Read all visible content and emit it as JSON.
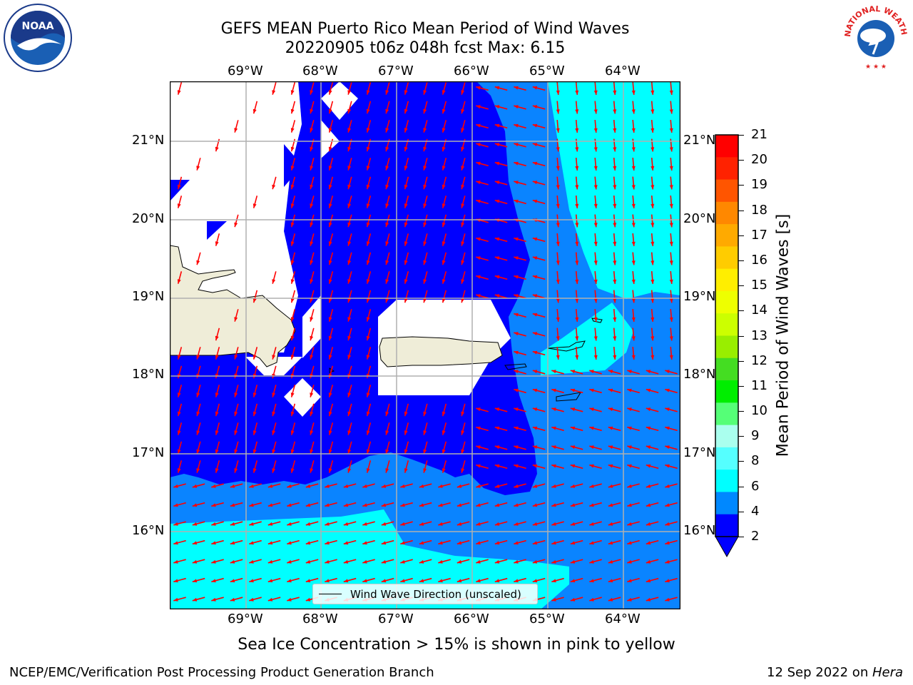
{
  "header": {
    "title_line1": "GEFS MEAN Puerto Rico Mean Period of Wind Waves",
    "title_line2": "20220905 t06z 048h fcst   Max: 6.15"
  },
  "logos": {
    "left": "NOAA",
    "right": "NATIONAL WEATHER SERVICE"
  },
  "map": {
    "lon_labels": [
      "69°W",
      "68°W",
      "67°W",
      "66°W",
      "65°W",
      "64°W"
    ],
    "lat_labels": [
      "21°N",
      "20°N",
      "19°N",
      "18°N",
      "17°N",
      "16°N"
    ],
    "legend_label": "Wind Wave Direction (unscaled)"
  },
  "colorbar": {
    "label": "Mean Period of Wind Waves [s]",
    "ticks": [
      "21",
      "20",
      "19",
      "18",
      "17",
      "16",
      "15",
      "14",
      "13",
      "12",
      "11",
      "10",
      "9",
      "8",
      "6",
      "4",
      "2"
    ],
    "colors": [
      "#ff0000",
      "#ff2200",
      "#ff5500",
      "#ff8800",
      "#ffaa00",
      "#ffcc00",
      "#ffee00",
      "#eeff00",
      "#ccff00",
      "#99ee00",
      "#44dd22",
      "#00ee00",
      "#55ff77",
      "#aaffee",
      "#55ffff",
      "#00ffff",
      "#0088ff",
      "#0000ff"
    ]
  },
  "colors": {
    "dark_blue": "#0000ff",
    "mid_blue": "#0a84ff",
    "cyan": "#00ffff",
    "land": "#efedd8",
    "arrow": "#ff0000"
  },
  "caption": "Sea Ice Concentration > 15% is shown in pink to yellow",
  "footer": {
    "left": "NCEP/EMC/Verification Post Processing Product Generation Branch",
    "right_prefix": "12 Sep 2022 on ",
    "right_host": "Hera"
  }
}
